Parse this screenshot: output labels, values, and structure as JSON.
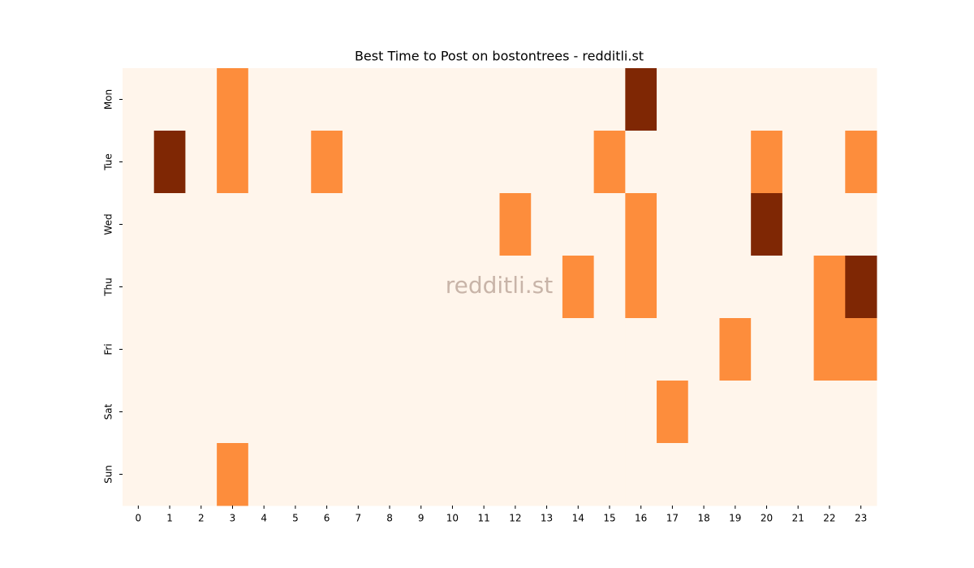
{
  "chart_data": {
    "type": "heatmap",
    "title": "Best Time to Post on bostontrees - redditli.st",
    "watermark": "redditli.st",
    "x": [
      0,
      1,
      2,
      3,
      4,
      5,
      6,
      7,
      8,
      9,
      10,
      11,
      12,
      13,
      14,
      15,
      16,
      17,
      18,
      19,
      20,
      21,
      22,
      23
    ],
    "y": [
      "Mon",
      "Tue",
      "Wed",
      "Thu",
      "Fri",
      "Sat",
      "Sun"
    ],
    "values": [
      [
        0,
        0,
        0,
        1,
        0,
        0,
        0,
        0,
        0,
        0,
        0,
        0,
        0,
        0,
        0,
        0,
        2,
        0,
        0,
        0,
        0,
        0,
        0,
        0
      ],
      [
        0,
        2,
        0,
        1,
        0,
        0,
        1,
        0,
        0,
        0,
        0,
        0,
        0,
        0,
        0,
        1,
        0,
        0,
        0,
        0,
        1,
        0,
        0,
        1
      ],
      [
        0,
        0,
        0,
        0,
        0,
        0,
        0,
        0,
        0,
        0,
        0,
        0,
        1,
        0,
        0,
        0,
        1,
        0,
        0,
        0,
        2,
        0,
        0,
        0
      ],
      [
        0,
        0,
        0,
        0,
        0,
        0,
        0,
        0,
        0,
        0,
        0,
        0,
        0,
        0,
        1,
        0,
        1,
        0,
        0,
        0,
        0,
        0,
        1,
        2
      ],
      [
        0,
        0,
        0,
        0,
        0,
        0,
        0,
        0,
        0,
        0,
        0,
        0,
        0,
        0,
        0,
        0,
        0,
        0,
        0,
        1,
        0,
        0,
        1,
        1
      ],
      [
        0,
        0,
        0,
        0,
        0,
        0,
        0,
        0,
        0,
        0,
        0,
        0,
        0,
        0,
        0,
        0,
        0,
        1,
        0,
        0,
        0,
        0,
        0,
        0
      ],
      [
        0,
        0,
        0,
        1,
        0,
        0,
        0,
        0,
        0,
        0,
        0,
        0,
        0,
        0,
        0,
        0,
        0,
        0,
        0,
        0,
        0,
        0,
        0,
        0
      ]
    ],
    "colormap": [
      "#fff5eb",
      "#fd8d3c",
      "#7f2704"
    ]
  }
}
